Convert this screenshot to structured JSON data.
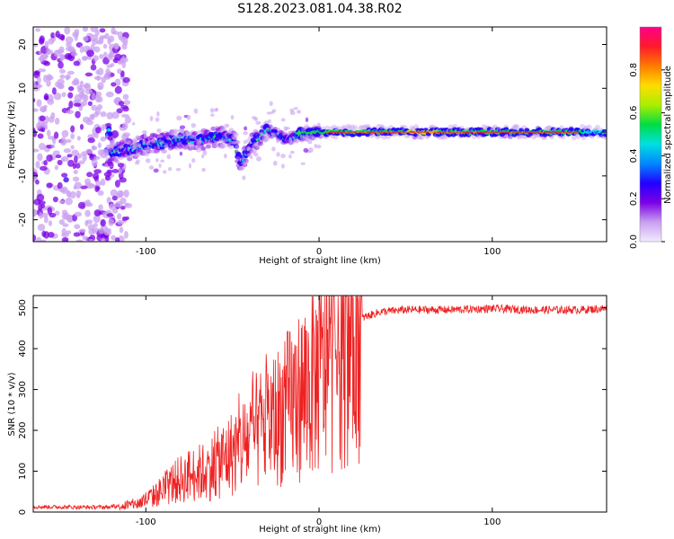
{
  "figure": {
    "title": "S128.2023.081.04.38.R02"
  },
  "chart_data": [
    {
      "type": "heatmap",
      "xlabel": "Height of straight line (km)",
      "ylabel": "Frequency (Hz)",
      "xlim": [
        -165,
        166
      ],
      "ylim": [
        -25,
        24
      ],
      "x_ticks": [
        -100,
        0,
        100
      ],
      "y_ticks": [
        -20,
        -10,
        0,
        10,
        20
      ],
      "colorbar": {
        "label": "Normalized spectral amplitude",
        "range": [
          0,
          1
        ],
        "ticks": [
          0.0,
          0.2,
          0.4,
          0.6,
          0.8
        ],
        "colors": [
          "#f2eaff",
          "#c9a0f0",
          "#7b00e6",
          "#2200ff",
          "#0088ff",
          "#00e0e0",
          "#00dd44",
          "#aaee00",
          "#ffdd00",
          "#ff7a00",
          "#ff1a2a",
          "#ff0088"
        ]
      },
      "features": {
        "noise_region_x": [
          -165,
          -110
        ],
        "noise_region_freq": [
          -25,
          24
        ],
        "wandering_signal": [
          {
            "x": -120,
            "f": -4.5
          },
          {
            "x": -110,
            "f": -4
          },
          {
            "x": -100,
            "f": -3
          },
          {
            "x": -90,
            "f": -2.5
          },
          {
            "x": -80,
            "f": -1.5
          },
          {
            "x": -70,
            "f": -2
          },
          {
            "x": -60,
            "f": -1
          },
          {
            "x": -50,
            "f": -1.5
          },
          {
            "x": -45,
            "f": -7
          },
          {
            "x": -40,
            "f": -3
          },
          {
            "x": -30,
            "f": 0.5
          },
          {
            "x": -20,
            "f": -1.5
          },
          {
            "x": -10,
            "f": -0.8
          },
          {
            "x": 0,
            "f": 0
          }
        ],
        "stable_signal": {
          "x_start": 0,
          "x_end": 166,
          "f": 0
        }
      }
    },
    {
      "type": "line",
      "xlabel": "Height of straight line (km)",
      "ylabel": "SNR (10 * v/v)",
      "xlim": [
        -165,
        166
      ],
      "ylim": [
        0,
        530
      ],
      "x_ticks": [
        -100,
        0,
        100
      ],
      "y_ticks": [
        0,
        100,
        200,
        300,
        400,
        500
      ],
      "series": [
        {
          "color": "#ee2222",
          "x": [
            -165,
            -140,
            -120,
            -105,
            -95,
            -85,
            -75,
            -65,
            -55,
            -45,
            -35,
            -25,
            -15,
            -5,
            5,
            15,
            25,
            35,
            50,
            75,
            100,
            125,
            150,
            166
          ],
          "y": [
            13,
            12,
            12,
            20,
            40,
            70,
            90,
            100,
            130,
            160,
            200,
            230,
            270,
            310,
            360,
            420,
            475,
            490,
            495,
            495,
            498,
            495,
            495,
            498
          ]
        }
      ]
    }
  ]
}
